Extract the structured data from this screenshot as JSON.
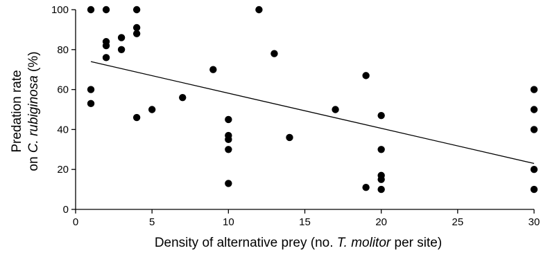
{
  "chart_data": {
    "type": "scatter",
    "title": "",
    "xlabel": {
      "parts": [
        {
          "text": "Density of alternative prey (no. ",
          "italic": false
        },
        {
          "text": "T. molitor",
          "italic": true
        },
        {
          "text": " per site)",
          "italic": false
        }
      ]
    },
    "ylabel": {
      "line1": [
        {
          "text": "Predation rate",
          "italic": false
        }
      ],
      "line2": [
        {
          "text": "on ",
          "italic": false
        },
        {
          "text": "C. rubiginosa",
          "italic": true
        },
        {
          "text": " (%)",
          "italic": false
        }
      ]
    },
    "xlim": [
      0,
      30
    ],
    "ylim": [
      0,
      100
    ],
    "xticks": [
      0,
      5,
      10,
      15,
      20,
      25,
      30
    ],
    "yticks": [
      0,
      20,
      40,
      60,
      80,
      100
    ],
    "grid": false,
    "points": [
      {
        "x": 1,
        "y": 100
      },
      {
        "x": 1,
        "y": 60
      },
      {
        "x": 1,
        "y": 53
      },
      {
        "x": 2,
        "y": 100
      },
      {
        "x": 2,
        "y": 84
      },
      {
        "x": 2,
        "y": 82
      },
      {
        "x": 2,
        "y": 76
      },
      {
        "x": 3,
        "y": 86
      },
      {
        "x": 3,
        "y": 80
      },
      {
        "x": 4,
        "y": 100
      },
      {
        "x": 4,
        "y": 91
      },
      {
        "x": 4,
        "y": 88
      },
      {
        "x": 4,
        "y": 46
      },
      {
        "x": 5,
        "y": 50
      },
      {
        "x": 7,
        "y": 56
      },
      {
        "x": 9,
        "y": 70
      },
      {
        "x": 10,
        "y": 45
      },
      {
        "x": 10,
        "y": 37
      },
      {
        "x": 10,
        "y": 35
      },
      {
        "x": 10,
        "y": 30
      },
      {
        "x": 10,
        "y": 13
      },
      {
        "x": 12,
        "y": 100
      },
      {
        "x": 13,
        "y": 78
      },
      {
        "x": 14,
        "y": 36
      },
      {
        "x": 17,
        "y": 50
      },
      {
        "x": 19,
        "y": 67
      },
      {
        "x": 19,
        "y": 11
      },
      {
        "x": 20,
        "y": 47
      },
      {
        "x": 20,
        "y": 30
      },
      {
        "x": 20,
        "y": 17
      },
      {
        "x": 20,
        "y": 15
      },
      {
        "x": 20,
        "y": 10
      },
      {
        "x": 30,
        "y": 60
      },
      {
        "x": 30,
        "y": 50
      },
      {
        "x": 30,
        "y": 40
      },
      {
        "x": 30,
        "y": 20
      },
      {
        "x": 30,
        "y": 10
      }
    ],
    "regression_line": {
      "x": [
        1,
        30
      ],
      "y": [
        74,
        23
      ]
    },
    "colors": {
      "points": "#000000",
      "line": "#000000"
    }
  }
}
